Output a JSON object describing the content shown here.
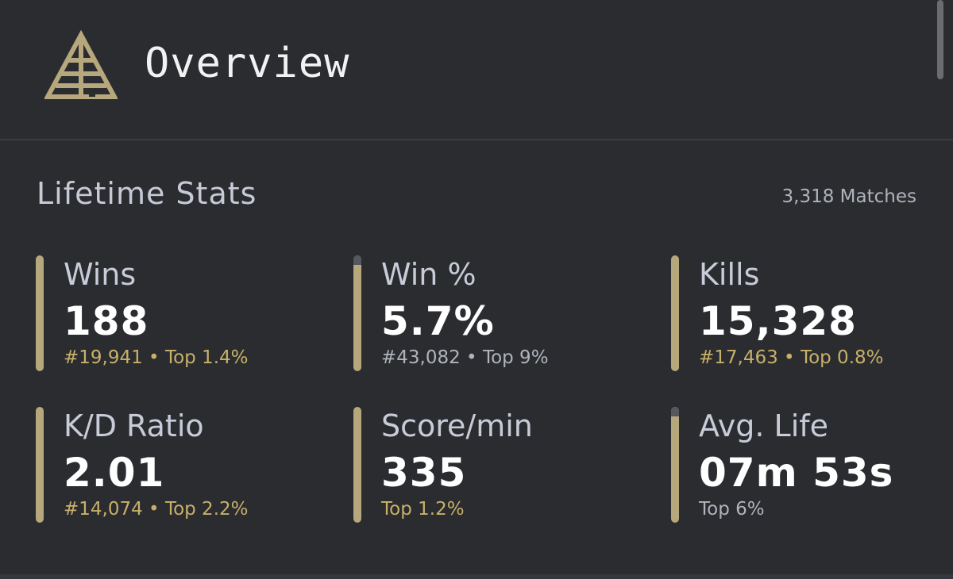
{
  "header": {
    "title": "Overview"
  },
  "section": {
    "title": "Lifetime Stats",
    "matches": "3,318 Matches"
  },
  "stats": [
    {
      "label": "Wins",
      "value": "188",
      "rank": "#19,941 • Top 1.4%"
    },
    {
      "label": "Win %",
      "value": "5.7%",
      "rank": "#43,082 • Top 9%"
    },
    {
      "label": "Kills",
      "value": "15,328",
      "rank": "#17,463 • Top 0.8%"
    },
    {
      "label": "K/D Ratio",
      "value": "2.01",
      "rank": "#14,074 • Top 2.2%"
    },
    {
      "label": "Score/min",
      "value": "335",
      "rank": "Top 1.2%"
    },
    {
      "label": "Avg. Life",
      "value": "07m 53s",
      "rank": "Top 6%"
    }
  ]
}
